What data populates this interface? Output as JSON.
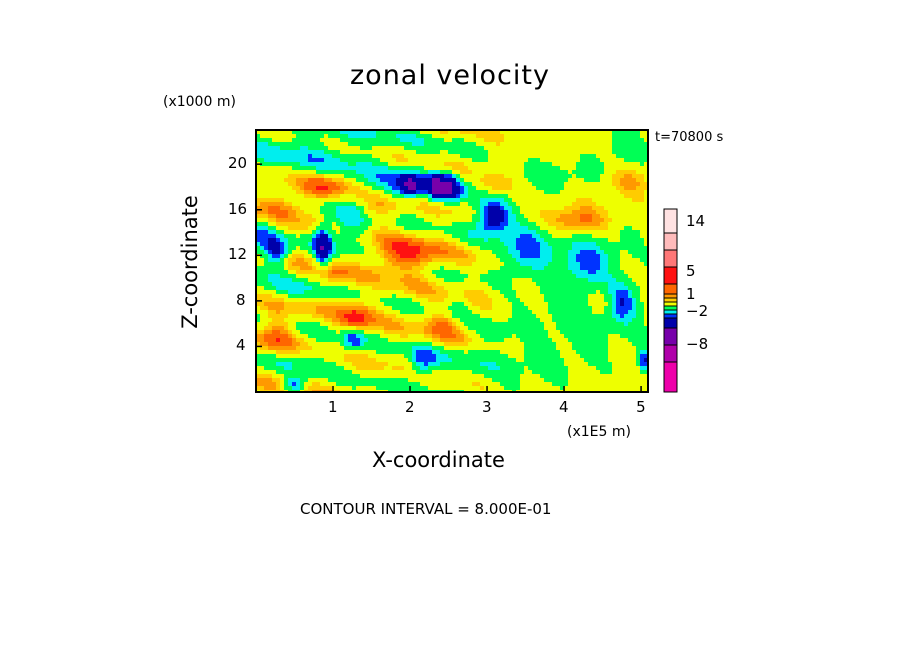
{
  "chart_data": {
    "type": "heatmap",
    "title": "zonal velocity",
    "xlabel": "X-coordinate",
    "ylabel": "Z-coordinate",
    "x_unit": "(x1E5 m)",
    "z_unit": "(x1000 m)",
    "time_label": "t=70800 s",
    "footer": "CONTOUR INTERVAL = 8.000E-01",
    "xlim": [
      0,
      5.09
    ],
    "ylim": [
      0,
      23
    ],
    "x_ticks": [
      "1",
      "2",
      "3",
      "4",
      "5"
    ],
    "x_tick_values": [
      1,
      2,
      3,
      4,
      5
    ],
    "y_ticks": [
      "4",
      "8",
      "12",
      "16",
      "20"
    ],
    "y_tick_values": [
      4,
      8,
      12,
      16,
      20
    ],
    "colorbar": {
      "labels": [
        "14",
        "5",
        "1",
        "−2",
        "−8"
      ],
      "colors_bottom_to_top": [
        "#ee00aa",
        "#b000aa",
        "#7700aa",
        "#0000aa",
        "#0033ff",
        "#00eeee",
        "#00ff55",
        "#eeff00",
        "#ffcc00",
        "#ff9900",
        "#ff6600",
        "#ff1111",
        "#ff7777",
        "#ffbbbb",
        "#ffe2e2"
      ],
      "level_boundaries": [
        -14,
        -11,
        -8,
        -5,
        -2.8,
        -2,
        -1.2,
        -0.3,
        0.6,
        1.2,
        1.8,
        2.6,
        5,
        8,
        11,
        14
      ]
    },
    "base_value": 0.3,
    "field_blobs": [
      [
        2.0,
        18.2,
        -4,
        0.1,
        0.6
      ],
      [
        2.34,
        18,
        -4,
        0.06,
        0.7
      ],
      [
        2.5,
        18,
        -4,
        0.08,
        0.7
      ],
      [
        2.2,
        18,
        -2,
        0.6,
        1.1
      ],
      [
        3.07,
        15.4,
        -4.2,
        0.15,
        1.0
      ],
      [
        3.5,
        12.5,
        -2,
        0.22,
        1.5
      ],
      [
        4.3,
        11.3,
        -2,
        0.22,
        1.2
      ],
      [
        0.87,
        12.8,
        -4.2,
        0.08,
        1.3
      ],
      [
        0.28,
        12.3,
        -3.2,
        0.1,
        0.8
      ],
      [
        1.95,
        11.9,
        2.6,
        0.3,
        1.0
      ],
      [
        0.9,
        18,
        2.2,
        0.2,
        0.8
      ],
      [
        0.26,
        16.4,
        2.0,
        0.25,
        0.9
      ],
      [
        4.16,
        15,
        2.2,
        0.3,
        0.9
      ],
      [
        3.1,
        18.2,
        1.8,
        0.2,
        0.7
      ],
      [
        1.3,
        6.6,
        2.2,
        0.15,
        1.0
      ],
      [
        0.26,
        4.9,
        1.8,
        0.15,
        1.5
      ],
      [
        1.26,
        4.6,
        -2.6,
        0.1,
        0.7
      ],
      [
        0.8,
        21.5,
        -1.5,
        0.9,
        2.0
      ],
      [
        4.8,
        21,
        -1.1,
        0.3,
        2.0
      ],
      [
        4.3,
        7,
        -1.1,
        0.7,
        3.0
      ],
      [
        3.0,
        2,
        -0.9,
        0.8,
        1.5
      ],
      [
        0.5,
        9,
        -1.1,
        0.5,
        0.8
      ],
      [
        0.5,
        3,
        -1.1,
        0.5,
        0.8
      ],
      [
        0.1,
        14,
        -1.8,
        0.15,
        2.0
      ],
      [
        4.85,
        18.7,
        1.5,
        0.2,
        1.0
      ],
      [
        4.76,
        8,
        -2.2,
        0.12,
        1.2
      ],
      [
        5.04,
        2.7,
        -3.2,
        0.05,
        0.6
      ],
      [
        2.16,
        2.6,
        -2.2,
        0.12,
        1.0
      ],
      [
        2.42,
        6,
        1.5,
        0.15,
        1.0
      ],
      [
        3.1,
        5.2,
        -1.1,
        0.15,
        0.7
      ],
      [
        2.6,
        7.8,
        -1.0,
        0.1,
        0.8
      ],
      [
        4.5,
        8,
        1.0,
        0.1,
        0.8
      ],
      [
        1.2,
        14.5,
        -2.0,
        0.2,
        1.2
      ],
      [
        1.0,
        10,
        1.4,
        0.15,
        1.0
      ],
      [
        0.5,
        0.6,
        -2.8,
        0.1,
        0.5
      ],
      [
        4.0,
        13.5,
        -0.9,
        0.8,
        1.5
      ],
      [
        3.8,
        19,
        -1.1,
        0.4,
        1.0
      ],
      [
        1.6,
        16,
        1.3,
        0.2,
        0.8
      ]
    ]
  }
}
